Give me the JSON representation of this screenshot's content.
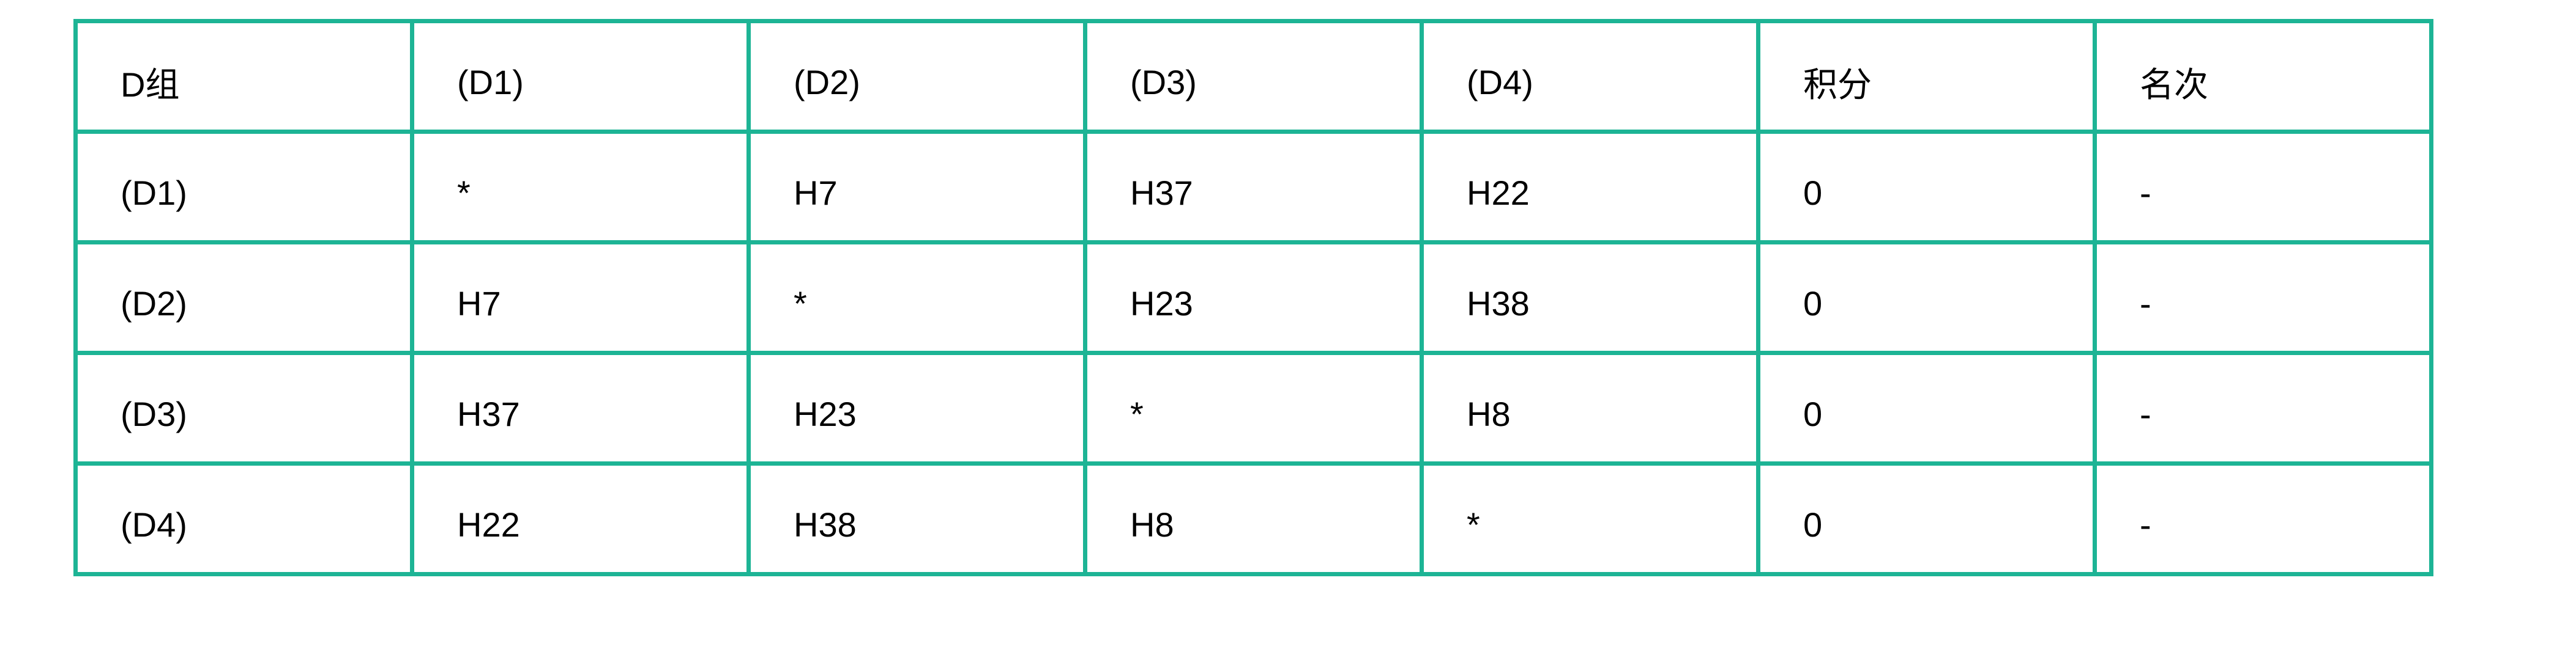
{
  "table": {
    "header": [
      "D组",
      "(D1)",
      "(D2)",
      "(D3)",
      "(D4)",
      "积分",
      "名次"
    ],
    "rows": [
      [
        "(D1)",
        "*",
        "H7",
        "H37",
        "H22",
        "0",
        "-"
      ],
      [
        "(D2)",
        "H7",
        "*",
        "H23",
        "H38",
        "0",
        "-"
      ],
      [
        "(D3)",
        "H37",
        "H23",
        "*",
        "H8",
        "0",
        "-"
      ],
      [
        "(D4)",
        "H22",
        "H38",
        "H8",
        "*",
        "0",
        "-"
      ]
    ]
  },
  "colors": {
    "border": "#1db495",
    "text": "#000000"
  }
}
